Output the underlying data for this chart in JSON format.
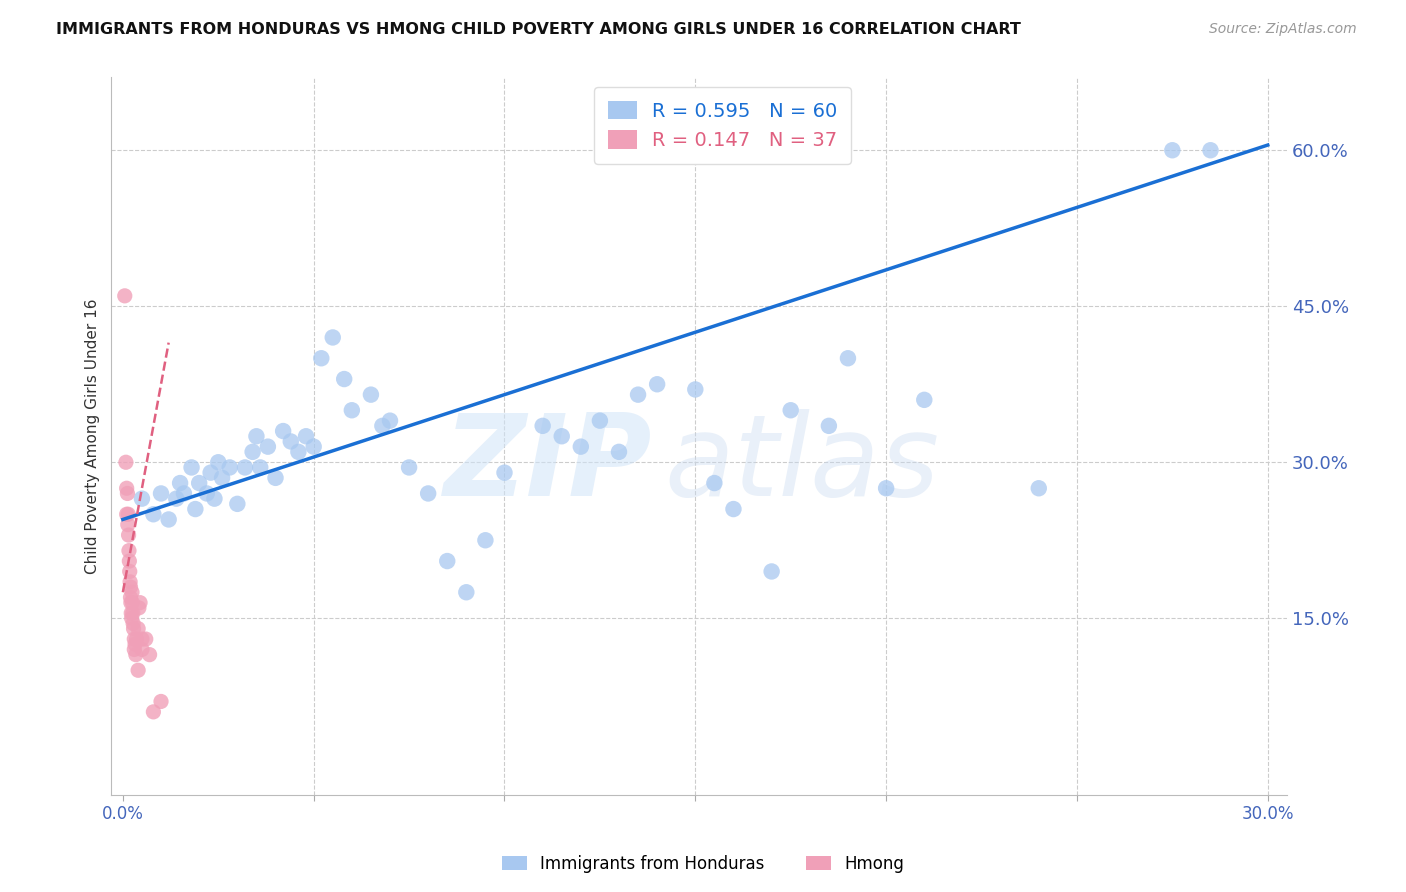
{
  "title": "IMMIGRANTS FROM HONDURAS VS HMONG CHILD POVERTY AMONG GIRLS UNDER 16 CORRELATION CHART",
  "source": "Source: ZipAtlas.com",
  "ylabel": "Child Poverty Among Girls Under 16",
  "legend_label1": "Immigrants from Honduras",
  "legend_label2": "Hmong",
  "R1": 0.595,
  "N1": 60,
  "R2": 0.147,
  "N2": 37,
  "xlim": [
    -0.003,
    0.305
  ],
  "ylim": [
    -0.02,
    0.67
  ],
  "yticks": [
    0.15,
    0.3,
    0.45,
    0.6
  ],
  "ytick_labels": [
    "15.0%",
    "30.0%",
    "45.0%",
    "60.0%"
  ],
  "xticks": [
    0.0,
    0.05,
    0.1,
    0.15,
    0.2,
    0.25,
    0.3
  ],
  "xtick_labels": [
    "0.0%",
    "",
    "",
    "",
    "",
    "",
    "30.0%"
  ],
  "color_blue": "#a8c8f0",
  "color_pink": "#f0a0b8",
  "line_blue": "#1a6fd4",
  "line_pink": "#e06080",
  "watermark_zip": "ZIP",
  "watermark_atlas": "atlas",
  "blue_x": [
    0.005,
    0.008,
    0.01,
    0.012,
    0.014,
    0.015,
    0.016,
    0.018,
    0.019,
    0.02,
    0.022,
    0.023,
    0.024,
    0.025,
    0.026,
    0.028,
    0.03,
    0.032,
    0.034,
    0.035,
    0.036,
    0.038,
    0.04,
    0.042,
    0.044,
    0.046,
    0.048,
    0.05,
    0.052,
    0.055,
    0.058,
    0.06,
    0.065,
    0.068,
    0.07,
    0.075,
    0.08,
    0.085,
    0.09,
    0.095,
    0.1,
    0.11,
    0.115,
    0.12,
    0.125,
    0.13,
    0.135,
    0.14,
    0.15,
    0.155,
    0.16,
    0.17,
    0.175,
    0.185,
    0.19,
    0.2,
    0.21,
    0.24,
    0.275,
    0.285
  ],
  "blue_y": [
    0.265,
    0.25,
    0.27,
    0.245,
    0.265,
    0.28,
    0.27,
    0.295,
    0.255,
    0.28,
    0.27,
    0.29,
    0.265,
    0.3,
    0.285,
    0.295,
    0.26,
    0.295,
    0.31,
    0.325,
    0.295,
    0.315,
    0.285,
    0.33,
    0.32,
    0.31,
    0.325,
    0.315,
    0.4,
    0.42,
    0.38,
    0.35,
    0.365,
    0.335,
    0.34,
    0.295,
    0.27,
    0.205,
    0.175,
    0.225,
    0.29,
    0.335,
    0.325,
    0.315,
    0.34,
    0.31,
    0.365,
    0.375,
    0.37,
    0.28,
    0.255,
    0.195,
    0.35,
    0.335,
    0.4,
    0.275,
    0.36,
    0.275,
    0.6,
    0.6
  ],
  "pink_x": [
    0.0005,
    0.0008,
    0.001,
    0.001,
    0.0012,
    0.0013,
    0.0014,
    0.0015,
    0.0016,
    0.0017,
    0.0018,
    0.0019,
    0.002,
    0.002,
    0.0021,
    0.0022,
    0.0023,
    0.0024,
    0.0025,
    0.0026,
    0.0027,
    0.0028,
    0.003,
    0.003,
    0.0032,
    0.0034,
    0.0036,
    0.004,
    0.004,
    0.0042,
    0.0045,
    0.005,
    0.005,
    0.006,
    0.007,
    0.008,
    0.01
  ],
  "pink_y": [
    0.46,
    0.3,
    0.275,
    0.25,
    0.27,
    0.24,
    0.25,
    0.23,
    0.215,
    0.205,
    0.195,
    0.185,
    0.18,
    0.17,
    0.165,
    0.155,
    0.15,
    0.175,
    0.165,
    0.155,
    0.145,
    0.14,
    0.13,
    0.12,
    0.125,
    0.115,
    0.13,
    0.1,
    0.14,
    0.16,
    0.165,
    0.13,
    0.12,
    0.13,
    0.115,
    0.06,
    0.07
  ],
  "blue_regline_x": [
    0.0,
    0.3
  ],
  "blue_regline_y": [
    0.245,
    0.605
  ],
  "pink_regline_x": [
    0.0,
    0.012
  ],
  "pink_regline_y": [
    0.175,
    0.415
  ]
}
